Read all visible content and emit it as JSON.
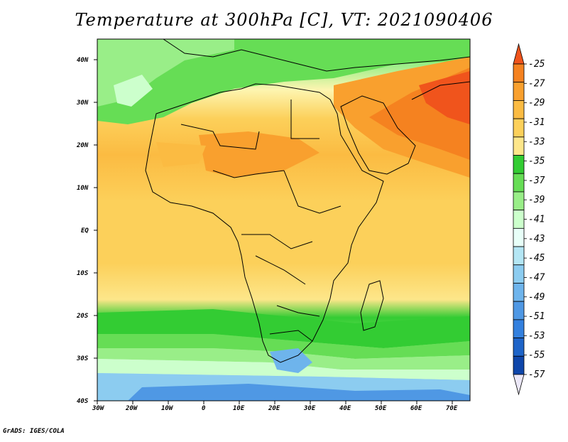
{
  "title": "Temperature at 300hPa [C], VT: 2021090406",
  "credit": "GrADS: IGES/COLA",
  "x_ticks": [
    "30W",
    "20W",
    "10W",
    "0",
    "10E",
    "20E",
    "30E",
    "40E",
    "50E",
    "60E",
    "70E"
  ],
  "y_ticks": [
    "40N",
    "30N",
    "20N",
    "10N",
    "EQ",
    "10S",
    "20S",
    "30S",
    "40S"
  ],
  "colorbar": {
    "labels": [
      "-25",
      "-27",
      "-29",
      "-31",
      "-33",
      "-35",
      "-37",
      "-39",
      "-41",
      "-43",
      "-45",
      "-47",
      "-49",
      "-51",
      "-53",
      "-55",
      "-57"
    ],
    "colors": [
      "#f0541c",
      "#f58220",
      "#f9a02e",
      "#fbbb42",
      "#fcd05a",
      "#fde68a",
      "#fdf5b0",
      "#33cc33",
      "#66dd55",
      "#99ee88",
      "#ccffcc",
      "#e8fff8",
      "#b4e6f4",
      "#8cccf0",
      "#6eb4ec",
      "#4f98e4",
      "#3380de",
      "#1e64c8",
      "#0f46aa",
      "#08247a"
    ]
  },
  "map": {
    "region": "Africa and surrounding areas",
    "lon_range": [
      -30,
      75
    ],
    "lat_range": [
      -40,
      45
    ]
  }
}
